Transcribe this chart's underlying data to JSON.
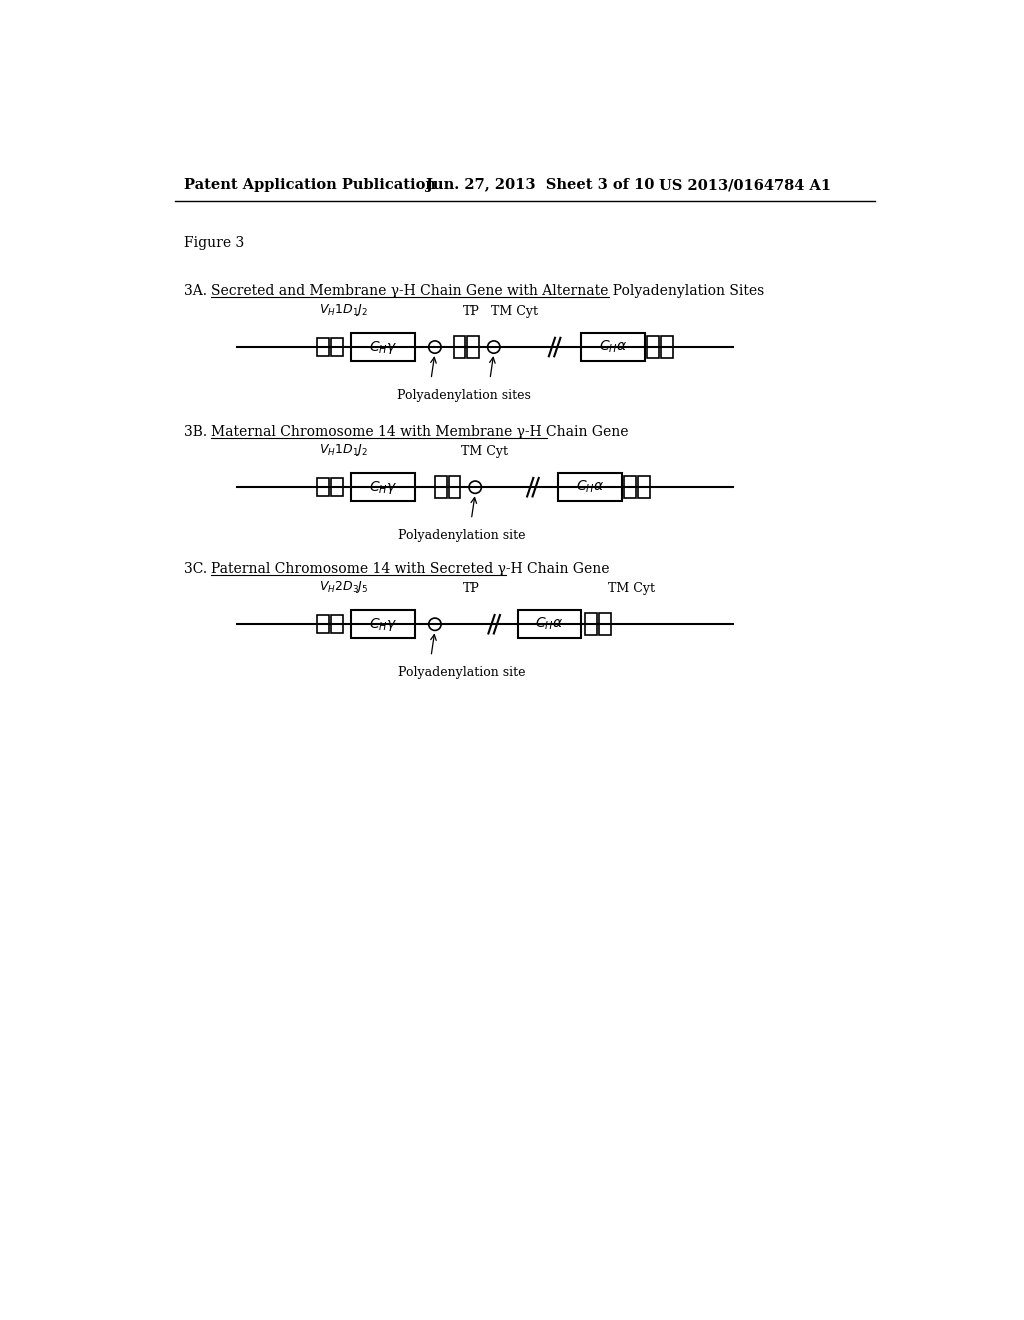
{
  "bg_color": "#ffffff",
  "header_left": "Patent Application Publication",
  "header_mid": "Jun. 27, 2013  Sheet 3 of 10",
  "header_right": "US 2013/0164784 A1",
  "figure_label": "Figure 3",
  "section_A_label": "3A.",
  "section_A_title": "Secreted and Membrane γ-H Chain Gene with Alternate Polyadenylation Sites",
  "section_B_label": "3B.",
  "section_B_title": "Maternal Chromosome 14 with Membrane γ-H Chain Gene",
  "section_C_label": "3C.",
  "section_C_title": "Paternal Chromosome 14 with Secreted γ-H Chain Gene",
  "text_color": "#000000"
}
